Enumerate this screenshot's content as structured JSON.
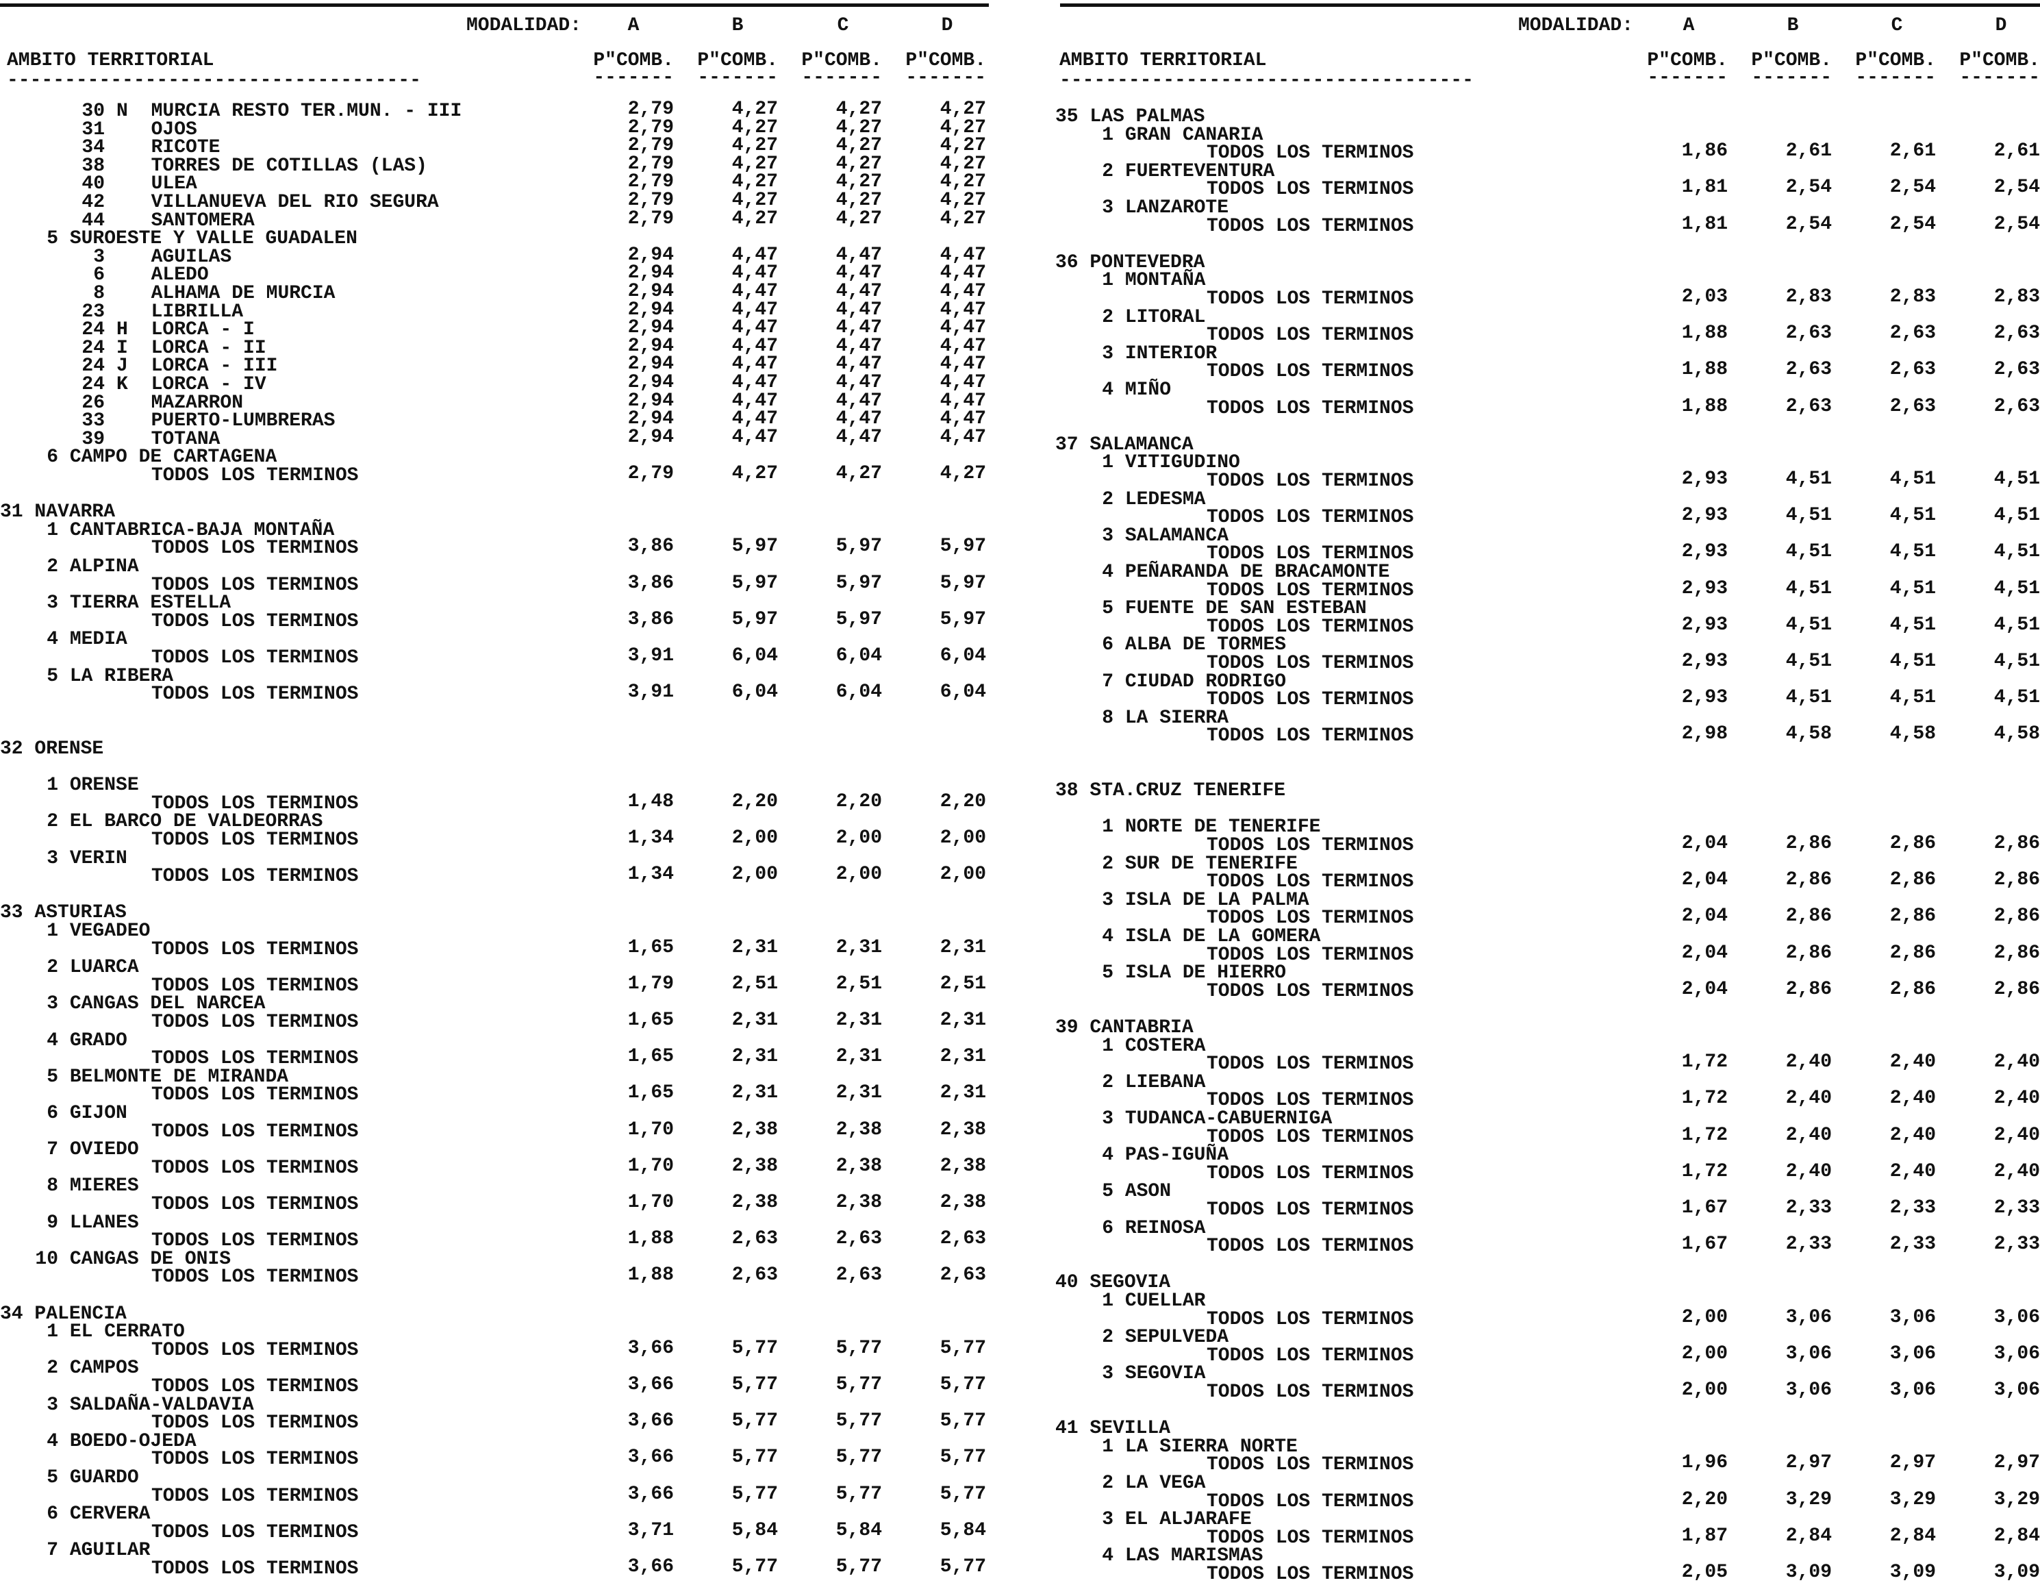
{
  "header": {
    "modalidad_label": "MODALIDAD:",
    "modalities": [
      "A",
      "B",
      "C",
      "D"
    ],
    "ambito_label": "AMBITO TERRITORIAL",
    "col_label": "P\"COMB.",
    "col_underline": "-------",
    "ambito_underline": "------------------------------------"
  },
  "left": [
    {
      "k": "m",
      "c": "30",
      "s": "N",
      "t": "MURCIA RESTO TER.MUN. - III",
      "v": [
        "2,79",
        "4,27",
        "4,27",
        "4,27"
      ]
    },
    {
      "k": "m",
      "c": "31",
      "s": "",
      "t": "OJOS",
      "v": [
        "2,79",
        "4,27",
        "4,27",
        "4,27"
      ]
    },
    {
      "k": "m",
      "c": "34",
      "s": "",
      "t": "RICOTE",
      "v": [
        "2,79",
        "4,27",
        "4,27",
        "4,27"
      ]
    },
    {
      "k": "m",
      "c": "38",
      "s": "",
      "t": "TORRES DE COTILLAS (LAS)",
      "v": [
        "2,79",
        "4,27",
        "4,27",
        "4,27"
      ]
    },
    {
      "k": "m",
      "c": "40",
      "s": "",
      "t": "ULEA",
      "v": [
        "2,79",
        "4,27",
        "4,27",
        "4,27"
      ]
    },
    {
      "k": "m",
      "c": "42",
      "s": "",
      "t": "VILLANUEVA DEL RIO SEGURA",
      "v": [
        "2,79",
        "4,27",
        "4,27",
        "4,27"
      ]
    },
    {
      "k": "m",
      "c": "44",
      "s": "",
      "t": "SANTOMERA",
      "v": [
        "2,79",
        "4,27",
        "4,27",
        "4,27"
      ]
    },
    {
      "k": "r",
      "c": "5",
      "t": "SUROESTE Y VALLE GUADALEN"
    },
    {
      "k": "m",
      "c": "3",
      "s": "",
      "t": "AGUILAS",
      "v": [
        "2,94",
        "4,47",
        "4,47",
        "4,47"
      ]
    },
    {
      "k": "m",
      "c": "6",
      "s": "",
      "t": "ALEDO",
      "v": [
        "2,94",
        "4,47",
        "4,47",
        "4,47"
      ]
    },
    {
      "k": "m",
      "c": "8",
      "s": "",
      "t": "ALHAMA DE MURCIA",
      "v": [
        "2,94",
        "4,47",
        "4,47",
        "4,47"
      ]
    },
    {
      "k": "m",
      "c": "23",
      "s": "",
      "t": "LIBRILLA",
      "v": [
        "2,94",
        "4,47",
        "4,47",
        "4,47"
      ]
    },
    {
      "k": "m",
      "c": "24",
      "s": "H",
      "t": "LORCA - I",
      "v": [
        "2,94",
        "4,47",
        "4,47",
        "4,47"
      ]
    },
    {
      "k": "m",
      "c": "24",
      "s": "I",
      "t": "LORCA - II",
      "v": [
        "2,94",
        "4,47",
        "4,47",
        "4,47"
      ]
    },
    {
      "k": "m",
      "c": "24",
      "s": "J",
      "t": "LORCA - III",
      "v": [
        "2,94",
        "4,47",
        "4,47",
        "4,47"
      ]
    },
    {
      "k": "m",
      "c": "24",
      "s": "K",
      "t": "LORCA - IV",
      "v": [
        "2,94",
        "4,47",
        "4,47",
        "4,47"
      ]
    },
    {
      "k": "m",
      "c": "26",
      "s": "",
      "t": "MAZARRON",
      "v": [
        "2,94",
        "4,47",
        "4,47",
        "4,47"
      ]
    },
    {
      "k": "m",
      "c": "33",
      "s": "",
      "t": "PUERTO-LUMBRERAS",
      "v": [
        "2,94",
        "4,47",
        "4,47",
        "4,47"
      ]
    },
    {
      "k": "m",
      "c": "39",
      "s": "",
      "t": "TOTANA",
      "v": [
        "2,94",
        "4,47",
        "4,47",
        "4,47"
      ]
    },
    {
      "k": "r",
      "c": "6",
      "t": "CAMPO DE CARTAGENA"
    },
    {
      "k": "t",
      "t": "TODOS LOS TERMINOS",
      "v": [
        "2,79",
        "4,27",
        "4,27",
        "4,27"
      ]
    },
    {
      "k": "b"
    },
    {
      "k": "p",
      "t": "31 NAVARRA"
    },
    {
      "k": "r",
      "c": "1",
      "t": "CANTABRICA-BAJA MONTAÑA"
    },
    {
      "k": "t",
      "t": "TODOS LOS TERMINOS",
      "v": [
        "3,86",
        "5,97",
        "5,97",
        "5,97"
      ]
    },
    {
      "k": "r",
      "c": "2",
      "t": "ALPINA"
    },
    {
      "k": "t",
      "t": "TODOS LOS TERMINOS",
      "v": [
        "3,86",
        "5,97",
        "5,97",
        "5,97"
      ]
    },
    {
      "k": "r",
      "c": "3",
      "t": "TIERRA ESTELLA"
    },
    {
      "k": "t",
      "t": "TODOS LOS TERMINOS",
      "v": [
        "3,86",
        "5,97",
        "5,97",
        "5,97"
      ]
    },
    {
      "k": "r",
      "c": "4",
      "t": "MEDIA"
    },
    {
      "k": "t",
      "t": "TODOS LOS TERMINOS",
      "v": [
        "3,91",
        "6,04",
        "6,04",
        "6,04"
      ]
    },
    {
      "k": "r",
      "c": "5",
      "t": "LA RIBERA"
    },
    {
      "k": "t",
      "t": "TODOS LOS TERMINOS",
      "v": [
        "3,91",
        "6,04",
        "6,04",
        "6,04"
      ]
    },
    {
      "k": "b"
    },
    {
      "k": "b"
    },
    {
      "k": "p",
      "t": "32 ORENSE"
    },
    {
      "k": "b"
    },
    {
      "k": "r",
      "c": "1",
      "t": "ORENSE"
    },
    {
      "k": "t",
      "t": "TODOS LOS TERMINOS",
      "v": [
        "1,48",
        "2,20",
        "2,20",
        "2,20"
      ]
    },
    {
      "k": "r",
      "c": "2",
      "t": "EL BARCO DE VALDEORRAS"
    },
    {
      "k": "t",
      "t": "TODOS LOS TERMINOS",
      "v": [
        "1,34",
        "2,00",
        "2,00",
        "2,00"
      ]
    },
    {
      "k": "r",
      "c": "3",
      "t": "VERIN"
    },
    {
      "k": "t",
      "t": "TODOS LOS TERMINOS",
      "v": [
        "1,34",
        "2,00",
        "2,00",
        "2,00"
      ]
    },
    {
      "k": "b"
    },
    {
      "k": "p",
      "t": "33 ASTURIAS"
    },
    {
      "k": "r",
      "c": "1",
      "t": "VEGADEO"
    },
    {
      "k": "t",
      "t": "TODOS LOS TERMINOS",
      "v": [
        "1,65",
        "2,31",
        "2,31",
        "2,31"
      ]
    },
    {
      "k": "r",
      "c": "2",
      "t": "LUARCA"
    },
    {
      "k": "t",
      "t": "TODOS LOS TERMINOS",
      "v": [
        "1,79",
        "2,51",
        "2,51",
        "2,51"
      ]
    },
    {
      "k": "r",
      "c": "3",
      "t": "CANGAS DEL NARCEA"
    },
    {
      "k": "t",
      "t": "TODOS LOS TERMINOS",
      "v": [
        "1,65",
        "2,31",
        "2,31",
        "2,31"
      ]
    },
    {
      "k": "r",
      "c": "4",
      "t": "GRADO"
    },
    {
      "k": "t",
      "t": "TODOS LOS TERMINOS",
      "v": [
        "1,65",
        "2,31",
        "2,31",
        "2,31"
      ]
    },
    {
      "k": "r",
      "c": "5",
      "t": "BELMONTE DE MIRANDA"
    },
    {
      "k": "t",
      "t": "TODOS LOS TERMINOS",
      "v": [
        "1,65",
        "2,31",
        "2,31",
        "2,31"
      ]
    },
    {
      "k": "r",
      "c": "6",
      "t": "GIJON"
    },
    {
      "k": "t",
      "t": "TODOS LOS TERMINOS",
      "v": [
        "1,70",
        "2,38",
        "2,38",
        "2,38"
      ]
    },
    {
      "k": "r",
      "c": "7",
      "t": "OVIEDO"
    },
    {
      "k": "t",
      "t": "TODOS LOS TERMINOS",
      "v": [
        "1,70",
        "2,38",
        "2,38",
        "2,38"
      ]
    },
    {
      "k": "r",
      "c": "8",
      "t": "MIERES"
    },
    {
      "k": "t",
      "t": "TODOS LOS TERMINOS",
      "v": [
        "1,70",
        "2,38",
        "2,38",
        "2,38"
      ]
    },
    {
      "k": "r",
      "c": "9",
      "t": "LLANES"
    },
    {
      "k": "t",
      "t": "TODOS LOS TERMINOS",
      "v": [
        "1,88",
        "2,63",
        "2,63",
        "2,63"
      ]
    },
    {
      "k": "r",
      "c": "10",
      "t": "CANGAS DE ONIS"
    },
    {
      "k": "t",
      "t": "TODOS LOS TERMINOS",
      "v": [
        "1,88",
        "2,63",
        "2,63",
        "2,63"
      ]
    },
    {
      "k": "b"
    },
    {
      "k": "p",
      "t": "34 PALENCIA"
    },
    {
      "k": "r",
      "c": "1",
      "t": "EL CERRATO"
    },
    {
      "k": "t",
      "t": "TODOS LOS TERMINOS",
      "v": [
        "3,66",
        "5,77",
        "5,77",
        "5,77"
      ]
    },
    {
      "k": "r",
      "c": "2",
      "t": "CAMPOS"
    },
    {
      "k": "t",
      "t": "TODOS LOS TERMINOS",
      "v": [
        "3,66",
        "5,77",
        "5,77",
        "5,77"
      ]
    },
    {
      "k": "r",
      "c": "3",
      "t": "SALDAÑA-VALDAVIA"
    },
    {
      "k": "t",
      "t": "TODOS LOS TERMINOS",
      "v": [
        "3,66",
        "5,77",
        "5,77",
        "5,77"
      ]
    },
    {
      "k": "r",
      "c": "4",
      "t": "BOEDO-OJEDA"
    },
    {
      "k": "t",
      "t": "TODOS LOS TERMINOS",
      "v": [
        "3,66",
        "5,77",
        "5,77",
        "5,77"
      ]
    },
    {
      "k": "r",
      "c": "5",
      "t": "GUARDO"
    },
    {
      "k": "t",
      "t": "TODOS LOS TERMINOS",
      "v": [
        "3,66",
        "5,77",
        "5,77",
        "5,77"
      ]
    },
    {
      "k": "r",
      "c": "6",
      "t": "CERVERA"
    },
    {
      "k": "t",
      "t": "TODOS LOS TERMINOS",
      "v": [
        "3,71",
        "5,84",
        "5,84",
        "5,84"
      ]
    },
    {
      "k": "r",
      "c": "7",
      "t": "AGUILAR"
    },
    {
      "k": "t",
      "t": "TODOS LOS TERMINOS",
      "v": [
        "3,66",
        "5,77",
        "5,77",
        "5,77"
      ]
    }
  ],
  "right": [
    {
      "k": "p",
      "t": "35 LAS PALMAS"
    },
    {
      "k": "r",
      "c": "1",
      "t": "GRAN CANARIA"
    },
    {
      "k": "t",
      "t": "TODOS LOS TERMINOS",
      "v": [
        "1,86",
        "2,61",
        "2,61",
        "2,61"
      ]
    },
    {
      "k": "r",
      "c": "2",
      "t": "FUERTEVENTURA"
    },
    {
      "k": "t",
      "t": "TODOS LOS TERMINOS",
      "v": [
        "1,81",
        "2,54",
        "2,54",
        "2,54"
      ]
    },
    {
      "k": "r",
      "c": "3",
      "t": "LANZAROTE"
    },
    {
      "k": "t",
      "t": "TODOS LOS TERMINOS",
      "v": [
        "1,81",
        "2,54",
        "2,54",
        "2,54"
      ]
    },
    {
      "k": "b"
    },
    {
      "k": "p",
      "t": "36 PONTEVEDRA"
    },
    {
      "k": "r",
      "c": "1",
      "t": "MONTAÑA"
    },
    {
      "k": "t",
      "t": "TODOS LOS TERMINOS",
      "v": [
        "2,03",
        "2,83",
        "2,83",
        "2,83"
      ]
    },
    {
      "k": "r",
      "c": "2",
      "t": "LITORAL"
    },
    {
      "k": "t",
      "t": "TODOS LOS TERMINOS",
      "v": [
        "1,88",
        "2,63",
        "2,63",
        "2,63"
      ]
    },
    {
      "k": "r",
      "c": "3",
      "t": "INTERIOR"
    },
    {
      "k": "t",
      "t": "TODOS LOS TERMINOS",
      "v": [
        "1,88",
        "2,63",
        "2,63",
        "2,63"
      ]
    },
    {
      "k": "r",
      "c": "4",
      "t": "MIÑO"
    },
    {
      "k": "t",
      "t": "TODOS LOS TERMINOS",
      "v": [
        "1,88",
        "2,63",
        "2,63",
        "2,63"
      ]
    },
    {
      "k": "b"
    },
    {
      "k": "p",
      "t": "37 SALAMANCA"
    },
    {
      "k": "r",
      "c": "1",
      "t": "VITIGUDINO"
    },
    {
      "k": "t",
      "t": "TODOS LOS TERMINOS",
      "v": [
        "2,93",
        "4,51",
        "4,51",
        "4,51"
      ]
    },
    {
      "k": "r",
      "c": "2",
      "t": "LEDESMA"
    },
    {
      "k": "t",
      "t": "TODOS LOS TERMINOS",
      "v": [
        "2,93",
        "4,51",
        "4,51",
        "4,51"
      ]
    },
    {
      "k": "r",
      "c": "3",
      "t": "SALAMANCA"
    },
    {
      "k": "t",
      "t": "TODOS LOS TERMINOS",
      "v": [
        "2,93",
        "4,51",
        "4,51",
        "4,51"
      ]
    },
    {
      "k": "r",
      "c": "4",
      "t": "PEÑARANDA DE BRACAMONTE"
    },
    {
      "k": "t",
      "t": "TODOS LOS TERMINOS",
      "v": [
        "2,93",
        "4,51",
        "4,51",
        "4,51"
      ]
    },
    {
      "k": "r",
      "c": "5",
      "t": "FUENTE DE SAN ESTEBAN"
    },
    {
      "k": "t",
      "t": "TODOS LOS TERMINOS",
      "v": [
        "2,93",
        "4,51",
        "4,51",
        "4,51"
      ]
    },
    {
      "k": "r",
      "c": "6",
      "t": "ALBA DE TORMES"
    },
    {
      "k": "t",
      "t": "TODOS LOS TERMINOS",
      "v": [
        "2,93",
        "4,51",
        "4,51",
        "4,51"
      ]
    },
    {
      "k": "r",
      "c": "7",
      "t": "CIUDAD RODRIGO"
    },
    {
      "k": "t",
      "t": "TODOS LOS TERMINOS",
      "v": [
        "2,93",
        "4,51",
        "4,51",
        "4,51"
      ]
    },
    {
      "k": "r",
      "c": "8",
      "t": "LA SIERRA"
    },
    {
      "k": "t",
      "t": "TODOS LOS TERMINOS",
      "v": [
        "2,98",
        "4,58",
        "4,58",
        "4,58"
      ]
    },
    {
      "k": "b"
    },
    {
      "k": "b"
    },
    {
      "k": "p",
      "t": "38 STA.CRUZ TENERIFE"
    },
    {
      "k": "b"
    },
    {
      "k": "r",
      "c": "1",
      "t": "NORTE DE TENERIFE"
    },
    {
      "k": "t",
      "t": "TODOS LOS TERMINOS",
      "v": [
        "2,04",
        "2,86",
        "2,86",
        "2,86"
      ]
    },
    {
      "k": "r",
      "c": "2",
      "t": "SUR DE TENERIFE"
    },
    {
      "k": "t",
      "t": "TODOS LOS TERMINOS",
      "v": [
        "2,04",
        "2,86",
        "2,86",
        "2,86"
      ]
    },
    {
      "k": "r",
      "c": "3",
      "t": "ISLA DE LA PALMA"
    },
    {
      "k": "t",
      "t": "TODOS LOS TERMINOS",
      "v": [
        "2,04",
        "2,86",
        "2,86",
        "2,86"
      ]
    },
    {
      "k": "r",
      "c": "4",
      "t": "ISLA DE LA GOMERA"
    },
    {
      "k": "t",
      "t": "TODOS LOS TERMINOS",
      "v": [
        "2,04",
        "2,86",
        "2,86",
        "2,86"
      ]
    },
    {
      "k": "r",
      "c": "5",
      "t": "ISLA DE HIERRO"
    },
    {
      "k": "t",
      "t": "TODOS LOS TERMINOS",
      "v": [
        "2,04",
        "2,86",
        "2,86",
        "2,86"
      ]
    },
    {
      "k": "b"
    },
    {
      "k": "p",
      "t": "39 CANTABRIA"
    },
    {
      "k": "r",
      "c": "1",
      "t": "COSTERA"
    },
    {
      "k": "t",
      "t": "TODOS LOS TERMINOS",
      "v": [
        "1,72",
        "2,40",
        "2,40",
        "2,40"
      ]
    },
    {
      "k": "r",
      "c": "2",
      "t": "LIEBANA"
    },
    {
      "k": "t",
      "t": "TODOS LOS TERMINOS",
      "v": [
        "1,72",
        "2,40",
        "2,40",
        "2,40"
      ]
    },
    {
      "k": "r",
      "c": "3",
      "t": "TUDANCA-CABUERNIGA"
    },
    {
      "k": "t",
      "t": "TODOS LOS TERMINOS",
      "v": [
        "1,72",
        "2,40",
        "2,40",
        "2,40"
      ]
    },
    {
      "k": "r",
      "c": "4",
      "t": "PAS-IGUÑA"
    },
    {
      "k": "t",
      "t": "TODOS LOS TERMINOS",
      "v": [
        "1,72",
        "2,40",
        "2,40",
        "2,40"
      ]
    },
    {
      "k": "r",
      "c": "5",
      "t": "ASON"
    },
    {
      "k": "t",
      "t": "TODOS LOS TERMINOS",
      "v": [
        "1,67",
        "2,33",
        "2,33",
        "2,33"
      ]
    },
    {
      "k": "r",
      "c": "6",
      "t": "REINOSA"
    },
    {
      "k": "t",
      "t": "TODOS LOS TERMINOS",
      "v": [
        "1,67",
        "2,33",
        "2,33",
        "2,33"
      ]
    },
    {
      "k": "b"
    },
    {
      "k": "p",
      "t": "40 SEGOVIA"
    },
    {
      "k": "r",
      "c": "1",
      "t": "CUELLAR"
    },
    {
      "k": "t",
      "t": "TODOS LOS TERMINOS",
      "v": [
        "2,00",
        "3,06",
        "3,06",
        "3,06"
      ]
    },
    {
      "k": "r",
      "c": "2",
      "t": "SEPULVEDA"
    },
    {
      "k": "t",
      "t": "TODOS LOS TERMINOS",
      "v": [
        "2,00",
        "3,06",
        "3,06",
        "3,06"
      ]
    },
    {
      "k": "r",
      "c": "3",
      "t": "SEGOVIA"
    },
    {
      "k": "t",
      "t": "TODOS LOS TERMINOS",
      "v": [
        "2,00",
        "3,06",
        "3,06",
        "3,06"
      ]
    },
    {
      "k": "b"
    },
    {
      "k": "p",
      "t": "41 SEVILLA"
    },
    {
      "k": "r",
      "c": "1",
      "t": "LA SIERRA NORTE"
    },
    {
      "k": "t",
      "t": "TODOS LOS TERMINOS",
      "v": [
        "1,96",
        "2,97",
        "2,97",
        "2,97"
      ]
    },
    {
      "k": "r",
      "c": "2",
      "t": "LA VEGA"
    },
    {
      "k": "t",
      "t": "TODOS LOS TERMINOS",
      "v": [
        "2,20",
        "3,29",
        "3,29",
        "3,29"
      ]
    },
    {
      "k": "r",
      "c": "3",
      "t": "EL ALJARAFE"
    },
    {
      "k": "t",
      "t": "TODOS LOS TERMINOS",
      "v": [
        "1,87",
        "2,84",
        "2,84",
        "2,84"
      ]
    },
    {
      "k": "r",
      "c": "4",
      "t": "LAS MARISMAS"
    },
    {
      "k": "t",
      "t": "TODOS LOS TERMINOS",
      "v": [
        "2,05",
        "3,09",
        "3,09",
        "3,09"
      ]
    }
  ]
}
